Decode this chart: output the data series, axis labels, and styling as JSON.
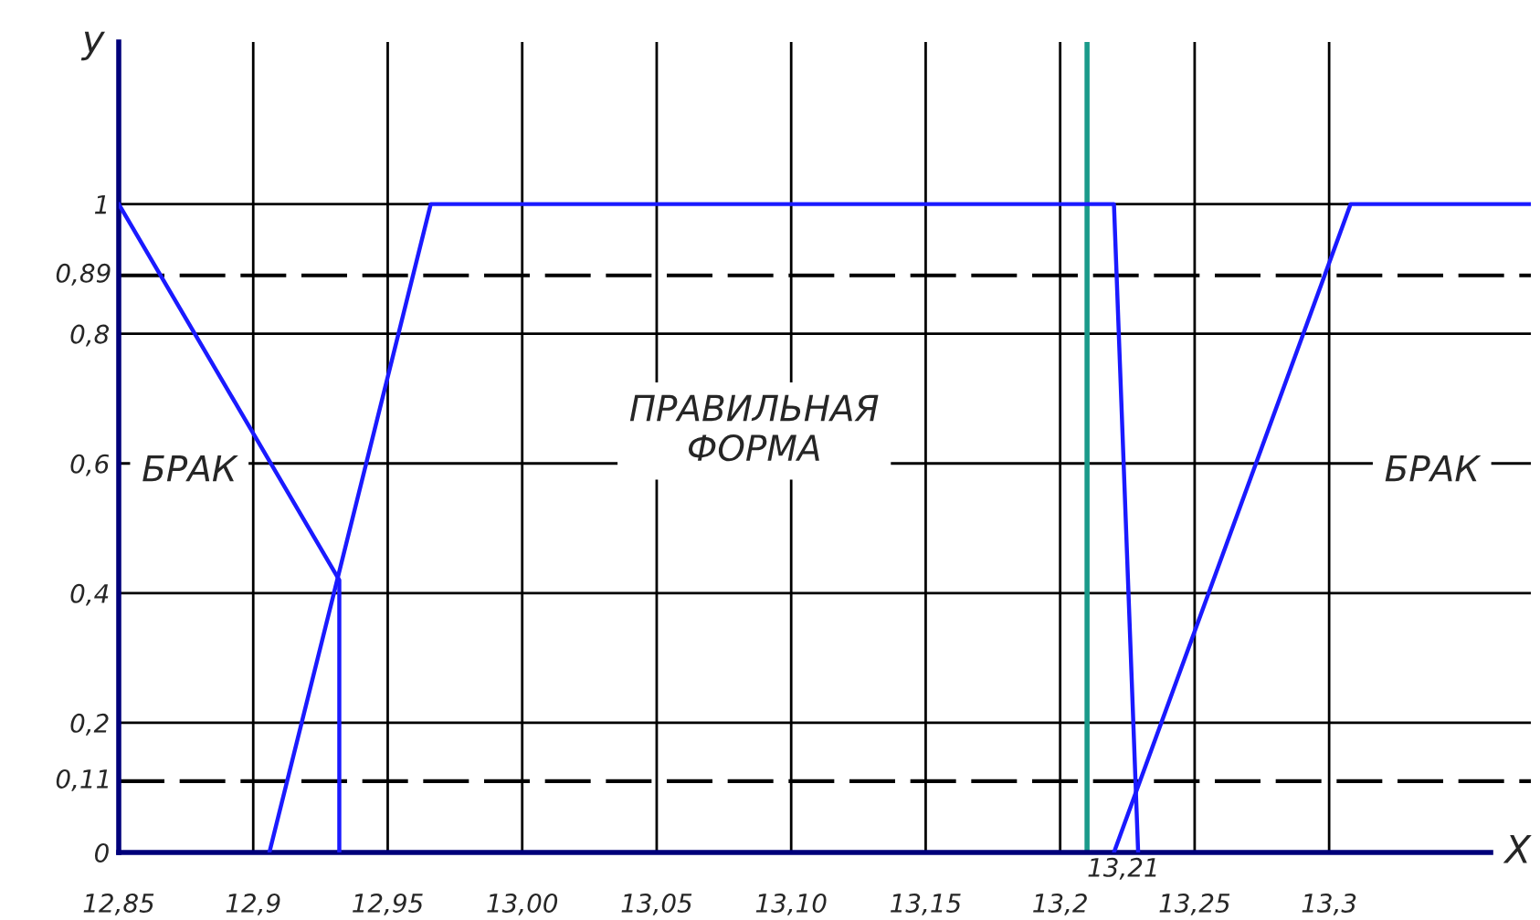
{
  "chart_data": {
    "type": "line",
    "xlabel": "X",
    "ylabel": "y",
    "series": [
      {
        "type": "line",
        "color": "#1a1aff",
        "x": [
          12.85,
          12.932,
          12.932
        ],
        "values": [
          1,
          0.42,
          0
        ]
      },
      {
        "type": "line",
        "color": "#1a1aff",
        "x": [
          12.906,
          12.966,
          13.22,
          13.229
        ],
        "values": [
          0,
          1,
          1,
          0
        ]
      },
      {
        "type": "line",
        "color": "#1a1aff",
        "x": [
          13.22,
          13.308,
          13.375
        ],
        "values": [
          0,
          1,
          1
        ]
      }
    ],
    "xlim": [
      12.85,
      13.375
    ],
    "ylim": [
      0,
      1.25
    ],
    "xticks": [
      {
        "value": 12.85,
        "label": "12,85"
      },
      {
        "value": 12.9,
        "label": "12,9"
      },
      {
        "value": 12.95,
        "label": "12,95"
      },
      {
        "value": 13.0,
        "label": "13,00"
      },
      {
        "value": 13.05,
        "label": "13,05"
      },
      {
        "value": 13.1,
        "label": "13,10"
      },
      {
        "value": 13.15,
        "label": "13,15"
      },
      {
        "value": 13.2,
        "label": "13,2"
      },
      {
        "value": 13.25,
        "label": "13,25"
      },
      {
        "value": 13.3,
        "label": "13,3"
      }
    ],
    "yticks": [
      0,
      {
        "value": 0.2,
        "label": "0,2"
      },
      {
        "value": 0.4,
        "label": "0,4"
      },
      {
        "value": 0.6,
        "label": "0,6"
      },
      {
        "value": 0.8,
        "label": "0,8"
      },
      1
    ],
    "ref_lines": [
      {
        "axis": "y",
        "value": 0.89,
        "label": "0,89",
        "color": "#000000",
        "line_style": "dashed"
      },
      {
        "axis": "y",
        "value": 0.11,
        "label": "0,11",
        "color": "#000000",
        "line_style": "dashed"
      },
      {
        "axis": "x",
        "value": 13.21,
        "label": "13,21",
        "color": "#1a9a8a",
        "line_style": "solid"
      }
    ],
    "annotations": [
      "БРАК",
      "ПРАВИЛЬНАЯ ФОРМА",
      "БРАК"
    ],
    "grid": true,
    "line_style": "solid",
    "marker": "none"
  }
}
